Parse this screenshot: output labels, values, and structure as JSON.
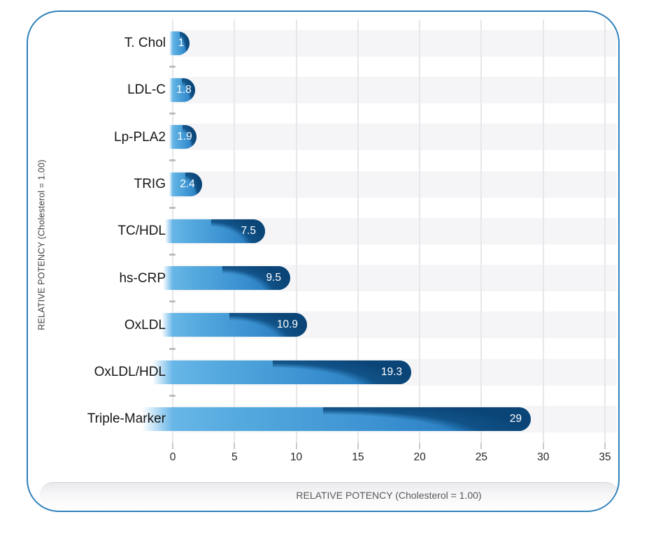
{
  "chart_data": {
    "type": "bar",
    "orientation": "horizontal",
    "categories": [
      "T. Chol",
      "LDL-C",
      "Lp-PLA2",
      "TRIG",
      "TC/HDL",
      "hs-CRP",
      "OxLDL",
      "OxLDL/HDL",
      "Triple-Marker"
    ],
    "values": [
      1,
      1.8,
      1.9,
      2.4,
      7.5,
      9.5,
      10.9,
      19.3,
      29
    ],
    "value_labels": [
      "1",
      "1.8",
      "1.9",
      "2.4",
      "7.5",
      "9.5",
      "10.9",
      "19.3",
      "29"
    ],
    "xlabel": "RELATIVE POTENCY (Cholesterol = 1.00)",
    "ylabel": "RELATIVE POTENCY (Cholesterol = 1.00)",
    "xlim": [
      0,
      35
    ],
    "x_ticks": [
      "0",
      "5",
      "10",
      "15",
      "20",
      "25",
      "30",
      "35"
    ],
    "grid": "vertical-on",
    "legend": "none",
    "colors": {
      "bar_light": "#55aade",
      "bar_mid": "#2b80c3",
      "bar_dark": "#0b4577",
      "card_border": "#2f80ba",
      "stripe": "#f5f5f7",
      "gridline": "#e7e7e9",
      "value_text": "#ffffff",
      "category_text": "#161616",
      "tick_text": "#262626",
      "axis_title_text": "#3f3f3f",
      "banner_text": "#595959"
    }
  }
}
